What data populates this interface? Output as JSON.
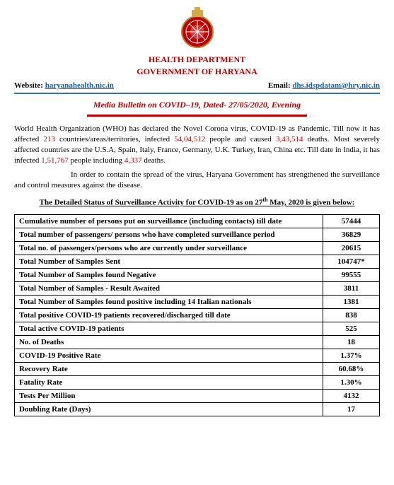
{
  "header": {
    "dept_line1": "HEALTH DEPARTMENT",
    "dept_line2": "GOVERNMENT OF HARYANA",
    "website_label": "Website:",
    "website_link": "haryanahealth.nic.in",
    "email_label": "Email:",
    "email_link": "dhs.idspdatam@hry.nic.in",
    "bulletin_title": "Media Bulletin on COVID–19, Dated- 27/05/2020, Evening"
  },
  "body": {
    "para1_a": "World Health Organization (WHO) has declared the Novel Corona virus, COVID-19 as Pandemic. Till now it has affected ",
    "para1_countries": "213",
    "para1_b": " countries/areas/territories, infected ",
    "para1_infected": "54,04,512",
    "para1_c": " people and caused ",
    "para1_deaths": "3,43,514",
    "para1_d": " deaths. Most severely affected countries are the U.S.A, Spain, Italy, France, Germany, U.K. Turkey, Iran, China etc. Till date in India, it has infected ",
    "para1_india_infected": "1,51,767",
    "para1_e": " people including ",
    "para1_india_deaths": "4,337",
    "para1_f": " deaths.",
    "para2": "In order to contain the spread of the virus, Haryana Government has strengthened the surveillance and control measures against the disease.",
    "table_title_a": "The Detailed Status of Surveillance Activity for COVID-19 as on 27",
    "table_title_sup": "th",
    "table_title_b": " May, 2020 is given below:"
  },
  "table": {
    "rows": [
      {
        "label": "Cumulative number of persons put on surveillance (including contacts) till date",
        "value": "57444"
      },
      {
        "label": "Total number of passengers/ persons who have completed surveillance period",
        "value": "36829"
      },
      {
        "label": "Total no. of passengers/persons who are currently under surveillance",
        "value": "20615"
      },
      {
        "label": "Total Number of Samples Sent",
        "value": "104747*"
      },
      {
        "label": "Total Number of Samples found Negative",
        "value": "99555"
      },
      {
        "label": "Total Number of Samples - Result Awaited",
        "value": "3811"
      },
      {
        "label": "Total Number of Samples found positive including 14 Italian nationals",
        "value": "1381"
      },
      {
        "label": "Total positive COVID-19 patients recovered/discharged till date",
        "value": "838"
      },
      {
        "label": "Total active COVID-19 patients",
        "value": "525"
      },
      {
        "label": "No. of Deaths",
        "value": "18"
      },
      {
        "label": "COVID-19 Positive Rate",
        "value": "1.37%"
      },
      {
        "label": "Recovery Rate",
        "value": "60.68%"
      },
      {
        "label": "Fatality Rate",
        "value": "1.30%"
      },
      {
        "label": "Tests Per Million",
        "value": "4132"
      },
      {
        "label": "Doubling Rate (Days)",
        "value": "17"
      }
    ]
  },
  "colors": {
    "red": "#c00000",
    "blue_line": "#2e74b5",
    "link": "#0563c1",
    "text": "#000000",
    "background": "#ffffff"
  }
}
